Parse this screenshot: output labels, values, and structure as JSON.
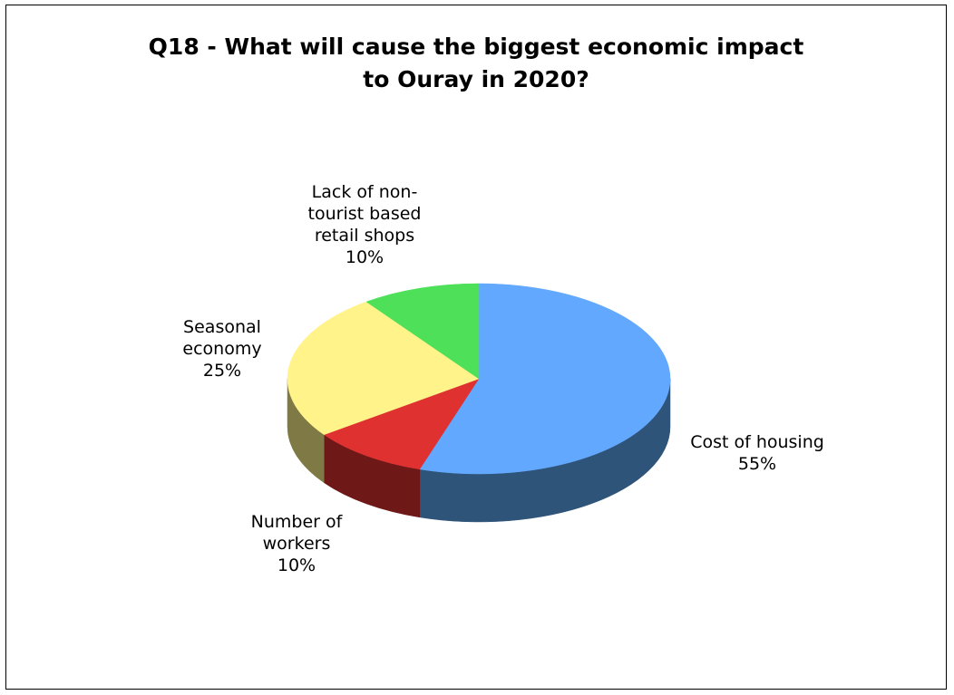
{
  "chart_data": {
    "type": "pie",
    "title_lines": [
      "Q18 - What will cause the biggest economic impact",
      "to Ouray in 2020?"
    ],
    "slices": [
      {
        "label_lines": [
          "Cost of housing"
        ],
        "value": 55,
        "value_text": "55%",
        "color": "#62A8FF",
        "side_color": "#2F5479"
      },
      {
        "label_lines": [
          "Number of",
          "workers"
        ],
        "value": 10,
        "value_text": "10%",
        "color": "#E03131",
        "side_color": "#6E1818"
      },
      {
        "label_lines": [
          "Seasonal",
          "economy"
        ],
        "value": 25,
        "value_text": "25%",
        "color": "#FFF38A",
        "side_color": "#7F7A45"
      },
      {
        "label_lines": [
          "Lack of non-",
          "tourist based",
          "retail shops"
        ],
        "value": 10,
        "value_text": "10%",
        "color": "#4FE05A",
        "side_color": "#27702D"
      }
    ],
    "style": "3d",
    "legend": "none"
  }
}
